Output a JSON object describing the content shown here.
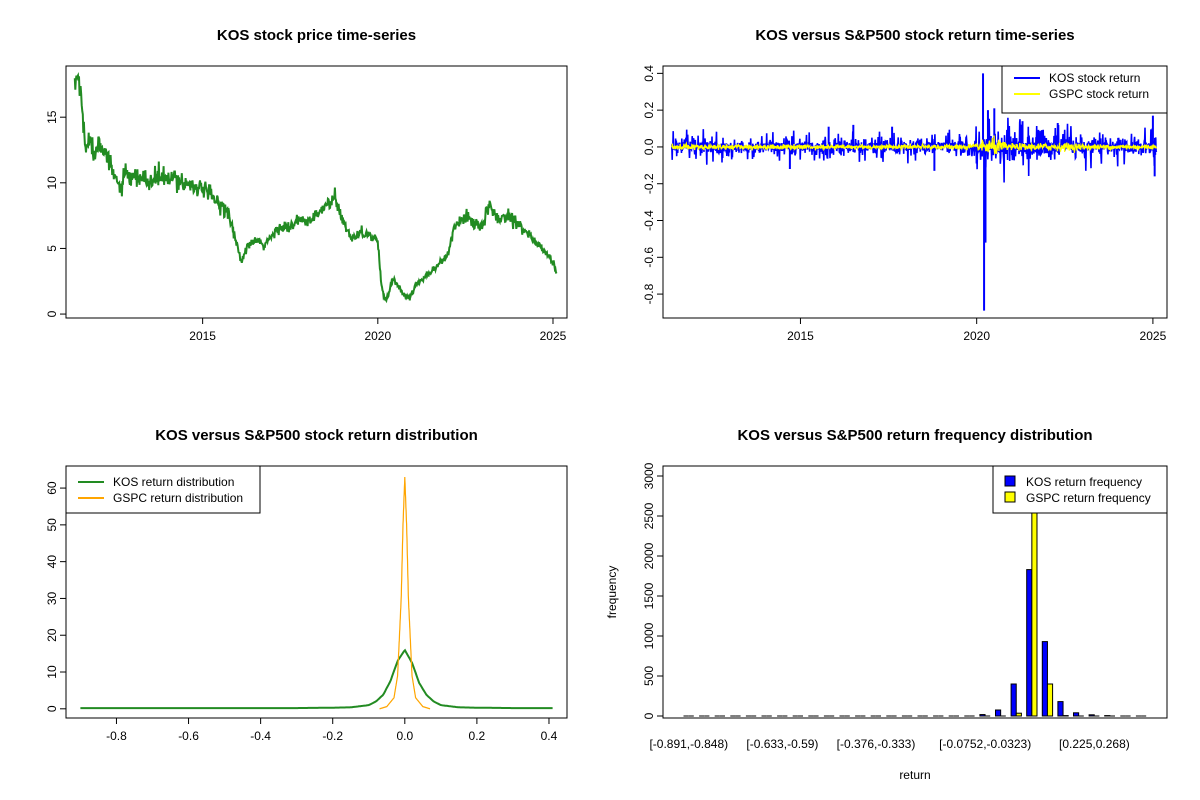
{
  "chart_data": [
    {
      "id": "price",
      "type": "line",
      "title": "KOS stock price time-series",
      "xlabel": "",
      "ylabel": "",
      "xlim": [
        2011.1,
        2025.4
      ],
      "ylim": [
        -0.3,
        18.9
      ],
      "x_ticks": [
        2015,
        2020,
        2025
      ],
      "y_ticks": [
        0,
        5,
        10,
        15
      ],
      "series": [
        {
          "color": "#228B22",
          "x": [
            2011.35,
            2011.45,
            2011.55,
            2011.65,
            2011.75,
            2011.9,
            2012.05,
            2012.2,
            2012.35,
            2012.5,
            2012.65,
            2012.8,
            2013.0,
            2013.25,
            2013.5,
            2013.75,
            2014.0,
            2014.25,
            2014.5,
            2014.75,
            2015.0,
            2015.25,
            2015.5,
            2015.75,
            2015.9,
            2016.0,
            2016.1,
            2016.3,
            2016.5,
            2016.75,
            2017.0,
            2017.25,
            2017.5,
            2017.75,
            2018.0,
            2018.25,
            2018.5,
            2018.75,
            2018.9,
            2019.1,
            2019.3,
            2019.5,
            2019.75,
            2020.0,
            2020.1,
            2020.2,
            2020.3,
            2020.45,
            2020.6,
            2020.75,
            2020.9,
            2021.1,
            2021.3,
            2021.5,
            2021.75,
            2022.0,
            2022.15,
            2022.3,
            2022.5,
            2022.75,
            2023.0,
            2023.15,
            2023.3,
            2023.5,
            2023.75,
            2024.0,
            2024.25,
            2024.5,
            2024.75,
            2025.0,
            2025.1
          ],
          "y": [
            17.4,
            18.2,
            16.0,
            12.5,
            13.8,
            12.0,
            13.5,
            12.5,
            11.2,
            10.5,
            9.5,
            10.6,
            10.2,
            10.4,
            10.0,
            10.5,
            10.2,
            10.3,
            10.0,
            9.8,
            9.5,
            9.0,
            8.3,
            7.8,
            6.0,
            5.0,
            4.0,
            5.2,
            5.6,
            5.2,
            6.0,
            6.8,
            6.5,
            7.2,
            7.0,
            7.5,
            8.2,
            8.8,
            7.8,
            6.5,
            5.8,
            6.3,
            6.0,
            5.6,
            2.2,
            1.0,
            1.5,
            2.8,
            2.0,
            1.5,
            1.2,
            2.3,
            2.8,
            3.2,
            3.8,
            4.5,
            6.5,
            6.8,
            7.5,
            7.0,
            6.5,
            8.2,
            7.8,
            7.2,
            7.6,
            7.0,
            6.2,
            5.5,
            4.8,
            4.0,
            3.2
          ]
        }
      ]
    },
    {
      "id": "returns",
      "type": "line",
      "title": "KOS versus S&P500 stock return time-series",
      "xlabel": "",
      "ylabel": "",
      "xlim": [
        2011.1,
        2025.4
      ],
      "ylim": [
        -0.93,
        0.44
      ],
      "x_ticks": [
        2015,
        2020,
        2025
      ],
      "y_ticks": [
        0.4,
        0.2,
        0.0,
        -0.2,
        -0.4,
        -0.6,
        -0.8
      ],
      "legend_position": "top-right",
      "series": [
        {
          "name": "KOS stock return",
          "color": "#0000FF",
          "band_x": [
            2011.3,
            2013.0,
            2015.0,
            2017.0,
            2019.0,
            2019.9,
            2020.3,
            2020.6,
            2021.0,
            2022.0,
            2023.0,
            2024.0,
            2025.1
          ],
          "band_y": [
            0.05,
            0.04,
            0.045,
            0.05,
            0.04,
            0.05,
            0.11,
            0.1,
            0.08,
            0.07,
            0.06,
            0.05,
            0.06
          ],
          "spikes": [
            {
              "x": 2020.18,
              "y": 0.4
            },
            {
              "x": 2020.21,
              "y": -0.89
            },
            {
              "x": 2020.25,
              "y": -0.52
            },
            {
              "x": 2020.32,
              "y": 0.2
            },
            {
              "x": 2020.5,
              "y": 0.21
            },
            {
              "x": 2021.3,
              "y": 0.14
            },
            {
              "x": 2015.8,
              "y": 0.11
            },
            {
              "x": 2018.8,
              "y": -0.13
            },
            {
              "x": 2016.5,
              "y": 0.12
            },
            {
              "x": 2022.3,
              "y": 0.13
            },
            {
              "x": 2025.0,
              "y": 0.17
            },
            {
              "x": 2025.05,
              "y": -0.16
            },
            {
              "x": 2014.7,
              "y": -0.12
            },
            {
              "x": 2017.6,
              "y": 0.11
            }
          ]
        },
        {
          "name": "GSPC stock return",
          "color": "#FFFF00",
          "band_x": [
            2011.3,
            2013.0,
            2015.0,
            2017.0,
            2019.0,
            2020.1,
            2020.3,
            2021.0,
            2022.5,
            2023.5,
            2025.1
          ],
          "band_y": [
            0.015,
            0.012,
            0.012,
            0.01,
            0.012,
            0.015,
            0.05,
            0.015,
            0.02,
            0.012,
            0.012
          ]
        }
      ]
    },
    {
      "id": "density",
      "type": "line",
      "title": "KOS versus S&P500 stock return distribution",
      "xlabel": "",
      "ylabel": "",
      "xlim": [
        -0.94,
        0.45
      ],
      "ylim": [
        -2.5,
        66
      ],
      "x_ticks": [
        -0.8,
        -0.6,
        -0.4,
        -0.2,
        0.0,
        0.2,
        0.4
      ],
      "y_ticks": [
        0,
        10,
        20,
        30,
        40,
        50,
        60
      ],
      "legend_position": "top-left",
      "series": [
        {
          "name": "KOS return distribution",
          "color": "#228B22",
          "x": [
            -0.9,
            -0.3,
            -0.2,
            -0.15,
            -0.1,
            -0.08,
            -0.06,
            -0.04,
            -0.02,
            0.0,
            0.02,
            0.04,
            0.06,
            0.08,
            0.1,
            0.15,
            0.2,
            0.3,
            0.41
          ],
          "y": [
            0.2,
            0.2,
            0.3,
            0.4,
            1.0,
            2.0,
            3.8,
            7.5,
            13.0,
            16.0,
            12.5,
            7.0,
            3.8,
            2.0,
            1.0,
            0.4,
            0.3,
            0.2,
            0.2
          ]
        },
        {
          "name": "GSPC return distribution",
          "color": "#FFA500",
          "x": [
            -0.07,
            -0.05,
            -0.03,
            -0.02,
            -0.01,
            -0.005,
            0.0,
            0.005,
            0.01,
            0.02,
            0.03,
            0.05,
            0.07
          ],
          "y": [
            0.0,
            0.6,
            3.0,
            9.0,
            30.0,
            50.0,
            63.0,
            50.0,
            30.0,
            9.0,
            3.0,
            0.6,
            0.0
          ]
        }
      ]
    },
    {
      "id": "frequency",
      "type": "bar",
      "title": "KOS versus S&P500 return frequency distribution",
      "xlabel": "return",
      "ylabel": "frequency",
      "ylim": [
        0,
        3000
      ],
      "y_ticks": [
        0,
        500,
        1000,
        1500,
        2000,
        2500,
        3000
      ],
      "legend_position": "top-right",
      "category_count": 30,
      "category_labels": [
        {
          "index": 0,
          "label": "[-0.891,-0.848)"
        },
        {
          "index": 6,
          "label": "[-0.633,-0.59)"
        },
        {
          "index": 12,
          "label": "[-0.376,-0.333)"
        },
        {
          "index": 19,
          "label": "[-0.0752,-0.0323)"
        },
        {
          "index": 26,
          "label": "[0.225,0.268)"
        }
      ],
      "series": [
        {
          "name": "KOS return frequency",
          "color": "#0000FF",
          "values": [
            1,
            0,
            0,
            0,
            0,
            0,
            0,
            0,
            0,
            0,
            0,
            0,
            0,
            0,
            0,
            0,
            0,
            2,
            4,
            18,
            75,
            400,
            1830,
            930,
            180,
            40,
            15,
            5,
            2,
            1
          ]
        },
        {
          "name": "GSPC return frequency",
          "color": "#FFFF00",
          "values": [
            0,
            0,
            0,
            0,
            0,
            0,
            0,
            0,
            0,
            0,
            0,
            0,
            0,
            0,
            0,
            0,
            0,
            0,
            0,
            0,
            0,
            35,
            2950,
            400,
            5,
            0,
            0,
            0,
            0,
            0
          ]
        }
      ]
    }
  ]
}
